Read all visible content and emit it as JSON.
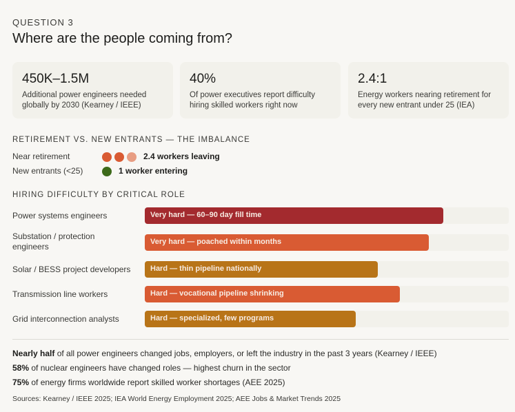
{
  "header": {
    "eyebrow": "QUESTION 3",
    "title": "Where are the people coming from?"
  },
  "stats": [
    {
      "value": "450K–1.5M",
      "desc_line1": "Additional power engineers needed",
      "desc_line2": "globally by 2030 (Kearney / IEEE)"
    },
    {
      "value": "40%",
      "desc_line1": "Of power executives report difficulty",
      "desc_line2": "hiring skilled workers right now"
    },
    {
      "value": "2.4:1",
      "desc_line1": "Energy workers nearing retirement for",
      "desc_line2": "every new entrant under 25 (IEA)"
    }
  ],
  "imbalance": {
    "heading": "RETIREMENT VS. NEW ENTRANTS — THE IMBALANCE",
    "rows": [
      {
        "label": "Near retirement",
        "dots": [
          "#d95b33",
          "#d95b33",
          "#e89d82"
        ],
        "value": "2.4 workers leaving"
      },
      {
        "label": "New entrants (<25)",
        "dots": [
          "#3d6a1a"
        ],
        "value": "1 worker entering"
      }
    ]
  },
  "chart_data": {
    "type": "bar",
    "title": "HIRING DIFFICULTY BY CRITICAL ROLE",
    "orientation": "horizontal",
    "xlabel": "",
    "ylabel": "",
    "xlim": [
      0,
      1
    ],
    "grid": false,
    "categories": [
      "Power systems engineers",
      "Substation / protection engineers",
      "Solar / BESS project developers",
      "Transmission line workers",
      "Grid interconnection analysts"
    ],
    "values": [
      0.82,
      0.78,
      0.64,
      0.7,
      0.58
    ],
    "bar_labels": [
      "Very hard — 60–90 day fill time",
      "Very hard — poached within months",
      "Hard — thin pipeline nationally",
      "Hard — vocational pipeline shrinking",
      "Hard — specialized, few programs"
    ],
    "colors": [
      "#a32a2e",
      "#d95b33",
      "#b87418",
      "#d95b33",
      "#b87418"
    ]
  },
  "notes": [
    {
      "bold": "Nearly half",
      "text": " of all power engineers changed jobs, employers, or left the industry in the past 3 years (Kearney / IEEE)"
    },
    {
      "bold": "58%",
      "text": " of nuclear engineers have changed roles — highest churn in the sector"
    },
    {
      "bold": "75%",
      "text": " of energy firms worldwide report skilled worker shortages (AEE 2025)"
    }
  ],
  "sources": "Sources: Kearney / IEEE 2025; IEA World Energy Employment 2025; AEE Jobs & Market Trends 2025"
}
